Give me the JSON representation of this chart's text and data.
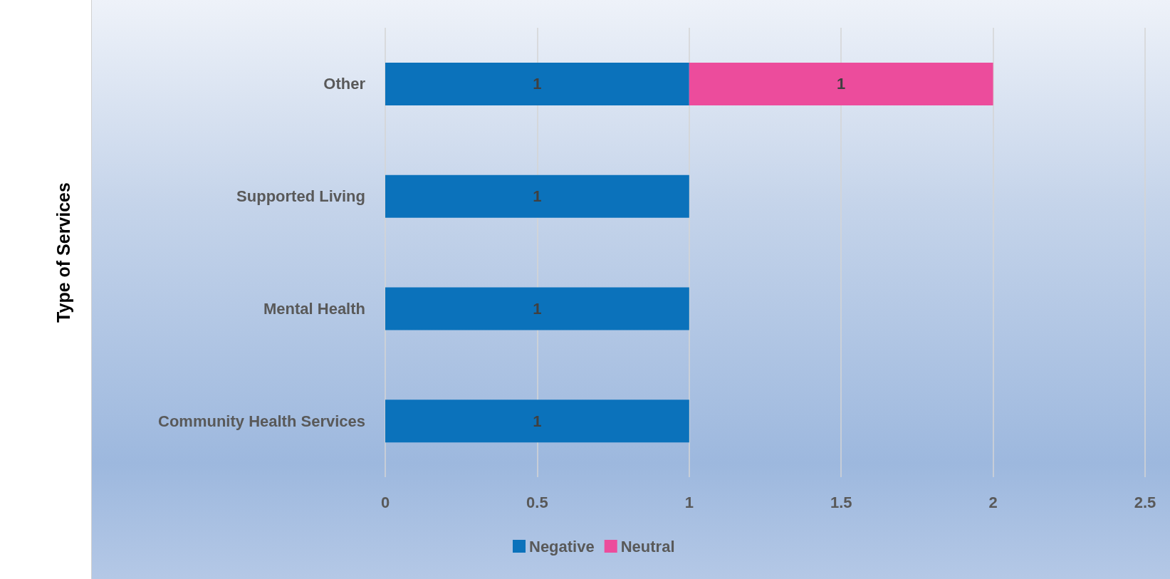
{
  "chart_data": {
    "type": "bar",
    "orientation": "horizontal",
    "stacked": true,
    "ylabel": "Type of Services",
    "categories": [
      "Other",
      "Supported Living",
      "Mental Health",
      "Community Health Services"
    ],
    "series": [
      {
        "name": "Negative",
        "color": "#0b72bb",
        "values": [
          1,
          1,
          1,
          1
        ]
      },
      {
        "name": "Neutral",
        "color": "#ec4c9c",
        "values": [
          1,
          null,
          null,
          null
        ]
      }
    ],
    "xlim": [
      0,
      2.5
    ],
    "xticks": [
      0,
      0.5,
      1,
      1.5,
      2,
      2.5
    ],
    "grid": "x",
    "legend": "bottom",
    "data_labels": true
  }
}
